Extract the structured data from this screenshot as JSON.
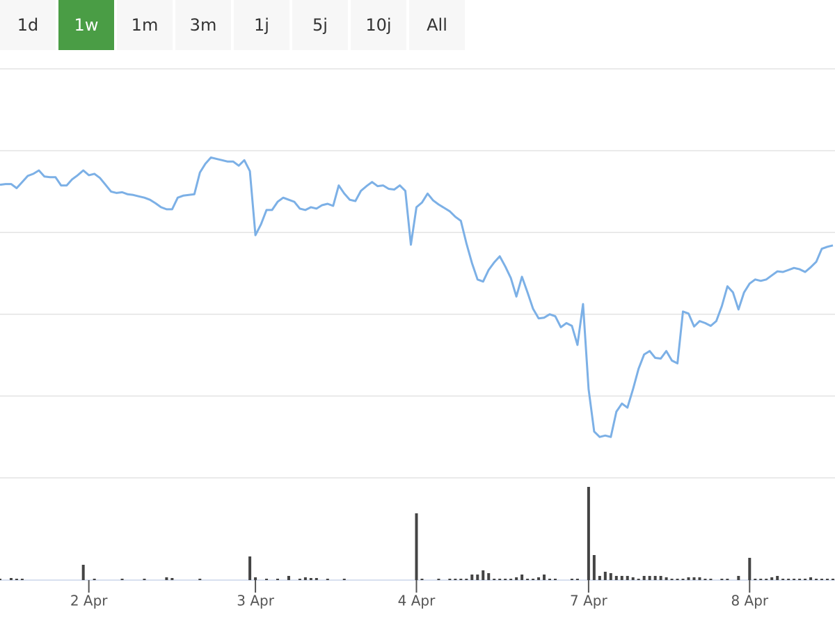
{
  "range_buttons": {
    "labels": [
      "1d",
      "1w",
      "1m",
      "3m",
      "1j",
      "5j",
      "10j",
      "All"
    ],
    "active": 1
  },
  "chart_data": {
    "type": "stock",
    "xlim": [
      0,
      150
    ],
    "xticks": [
      {
        "value": 16,
        "label": "2 Apr"
      },
      {
        "value": 46,
        "label": "3 Apr"
      },
      {
        "value": 75,
        "label": "4 Apr"
      },
      {
        "value": 106,
        "label": "7 Apr"
      },
      {
        "value": 135,
        "label": "8 Apr"
      }
    ],
    "ylim": [
      0,
      600
    ],
    "yticks_grid": [
      0,
      120,
      240,
      360,
      480,
      600
    ],
    "grid": true,
    "series": [
      {
        "color": "#7cb0e6",
        "values": [
          430,
          431,
          431,
          425,
          434,
          443,
          446,
          451,
          442,
          441,
          441,
          429,
          429,
          438,
          444,
          451,
          444,
          446,
          440,
          430,
          420,
          418,
          419,
          416,
          415,
          413,
          411,
          408,
          403,
          397,
          394,
          394,
          411,
          414,
          415,
          416,
          448,
          461,
          470,
          468,
          466,
          464,
          464,
          458,
          466,
          450,
          356,
          372,
          393,
          393,
          405,
          411,
          408,
          405,
          395,
          393,
          397,
          395,
          400,
          402,
          399,
          429,
          417,
          408,
          406,
          421,
          428,
          434,
          428,
          429,
          424,
          423,
          429,
          421,
          342,
          397,
          404,
          417,
          407,
          401,
          396,
          391,
          383,
          377,
          344,
          315,
          291,
          288,
          305,
          316,
          325,
          310,
          293,
          266,
          295,
          272,
          248,
          234,
          235,
          240,
          237,
          221,
          227,
          223,
          195,
          255,
          130,
          68,
          60,
          62,
          60,
          97,
          109,
          103,
          130,
          160,
          181,
          186,
          176,
          175,
          186,
          172,
          168,
          244,
          241,
          222,
          230,
          227,
          223,
          230,
          252,
          281,
          272,
          247,
          272,
          285,
          291,
          289,
          291,
          297,
          303,
          302,
          305,
          308,
          306,
          302,
          309,
          317,
          336,
          339,
          341
        ]
      },
      {
        "color": "#444444",
        "axis": "y2",
        "values": [
          2,
          0,
          3,
          2,
          2,
          0,
          0,
          0,
          0,
          0,
          0,
          0,
          0,
          0,
          0,
          22,
          0,
          2,
          0,
          0,
          0,
          0,
          2,
          0,
          0,
          0,
          2,
          0,
          0,
          0,
          4,
          3,
          0,
          0,
          0,
          0,
          2,
          0,
          0,
          0,
          0,
          0,
          0,
          0,
          0,
          34,
          4,
          0,
          2,
          0,
          2,
          0,
          6,
          0,
          2,
          4,
          3,
          3,
          0,
          2,
          0,
          0,
          2,
          0,
          0,
          0,
          0,
          0,
          0,
          0,
          0,
          0,
          0,
          0,
          0,
          96,
          2,
          0,
          0,
          2,
          0,
          2,
          2,
          2,
          2,
          8,
          8,
          14,
          10,
          2,
          2,
          2,
          2,
          4,
          8,
          2,
          2,
          4,
          8,
          2,
          2,
          0,
          0,
          2,
          2,
          0,
          134,
          36,
          6,
          12,
          10,
          6,
          6,
          6,
          4,
          2,
          6,
          6,
          6,
          6,
          4,
          2,
          2,
          2,
          4,
          4,
          4,
          2,
          2,
          0,
          2,
          2,
          0,
          6,
          0,
          32,
          2,
          2,
          2,
          4,
          6,
          2,
          2,
          2,
          2,
          2,
          4,
          2,
          2,
          2,
          2
        ]
      }
    ],
    "y2lim": [
      0,
      147
    ]
  }
}
